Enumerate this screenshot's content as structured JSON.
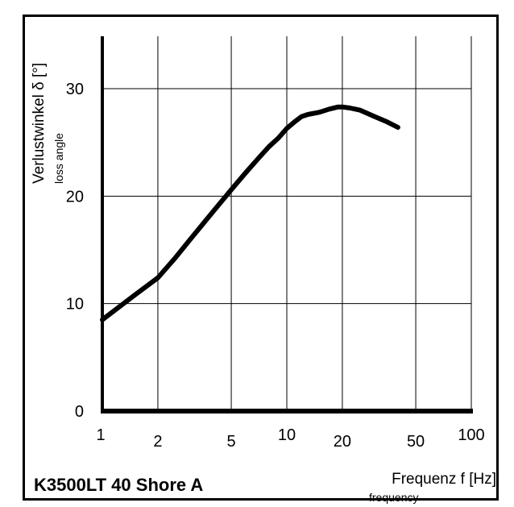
{
  "chart_data": {
    "type": "line",
    "title": "K3500LT 40 Shore A",
    "ylabel": "Verlustwinkel δ [°]",
    "ylabel_sub": "loss angle",
    "xlabel": "Frequenz f [Hz]",
    "xlabel_sub": "frequency",
    "x_scale": "log",
    "xlim": [
      1,
      100
    ],
    "ylim": [
      0,
      35
    ],
    "x_ticks": [
      1,
      2,
      5,
      10,
      20,
      50,
      100
    ],
    "x_tick_labels": [
      "1",
      "2",
      "5",
      "10",
      "20",
      "50",
      "100"
    ],
    "y_ticks": [
      0,
      10,
      20,
      30
    ],
    "y_tick_labels": [
      "0",
      "10",
      "20",
      "30"
    ],
    "grid": true,
    "series": [
      {
        "x": [
          1,
          1.5,
          2,
          2.5,
          3,
          4,
          5,
          6,
          7,
          8,
          9,
          10,
          11,
          12,
          13,
          15,
          17,
          19,
          20,
          22,
          25,
          30,
          35,
          40
        ],
        "y": [
          8.5,
          10.8,
          12.4,
          14.3,
          16.0,
          18.6,
          20.6,
          22.2,
          23.5,
          24.6,
          25.4,
          26.3,
          26.9,
          27.4,
          27.6,
          27.8,
          28.1,
          28.3,
          28.3,
          28.2,
          28.0,
          27.4,
          26.9,
          26.4
        ]
      }
    ]
  }
}
